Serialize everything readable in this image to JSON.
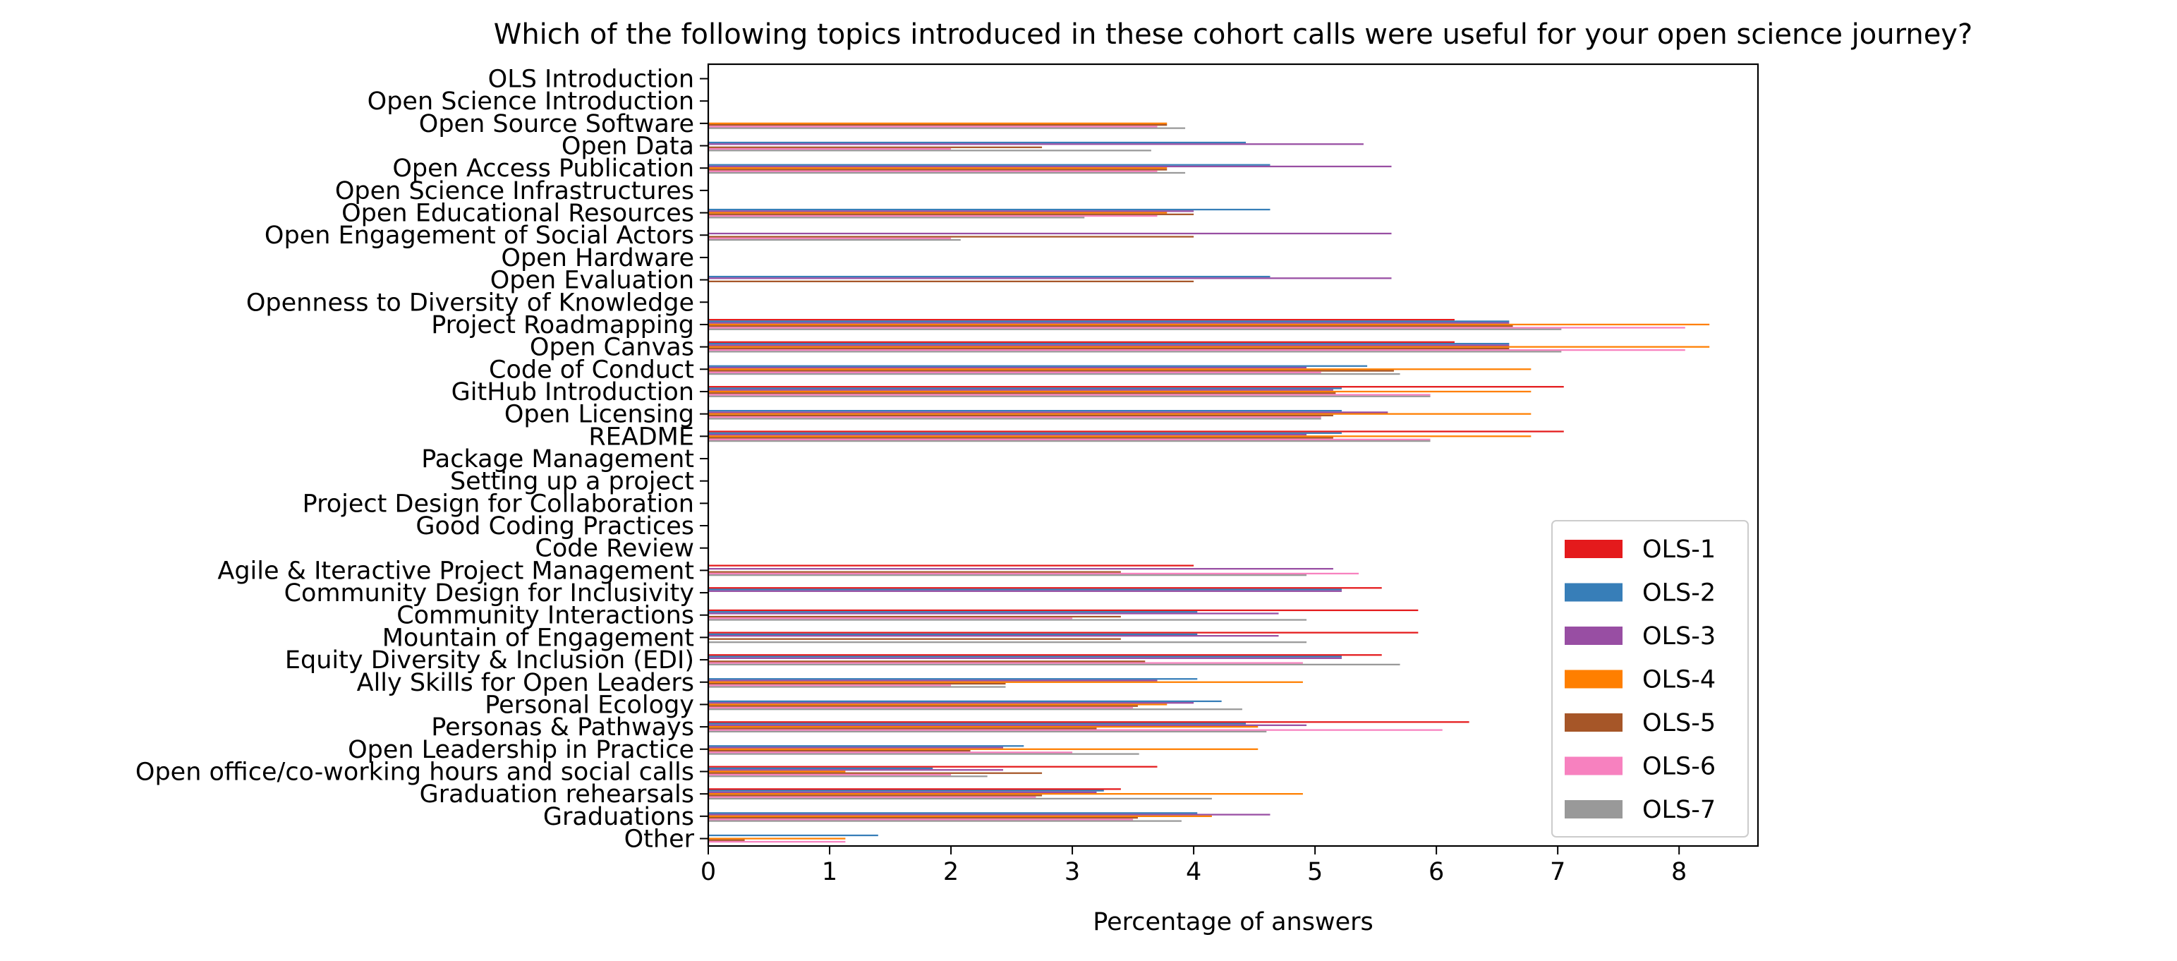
{
  "chart_data": {
    "type": "bar",
    "orientation": "horizontal",
    "title": "Which of the following topics introduced in these cohort calls were useful for your open science journey?",
    "xlabel": "Percentage of answers",
    "ylabel": "",
    "xlim": [
      0,
      8.65
    ],
    "xticks": [
      "0",
      "1",
      "2",
      "3",
      "4",
      "5",
      "6",
      "7",
      "8"
    ],
    "grid": false,
    "legend_position": "bottom-right",
    "categories": [
      "OLS Introduction",
      "Open Science Introduction",
      "Open Source Software",
      "Open Data",
      "Open Access Publication",
      "Open Science Infrastructures",
      "Open Educational Resources",
      "Open Engagement of Social Actors",
      "Open Hardware",
      "Open Evaluation",
      "Openness to Diversity of Knowledge",
      "Project Roadmapping",
      "Open Canvas",
      "Code of Conduct",
      "GitHub Introduction",
      "Open Licensing",
      "README",
      "Package Management",
      "Setting up a project",
      "Project Design for Collaboration",
      "Good Coding Practices",
      "Code Review",
      "Agile & Iteractive Project Management",
      "Community Design for Inclusivity",
      "Community Interactions",
      "Mountain of Engagement",
      "Equity Diversity & Inclusion (EDI)",
      "Ally Skills for Open Leaders",
      "Personal Ecology",
      "Personas & Pathways",
      "Open Leadership in Practice",
      "Open office/co-working hours and social calls",
      "Graduation rehearsals",
      "Graduations",
      "Other"
    ],
    "series": [
      {
        "name": "OLS-1",
        "color": "#e41a1c",
        "values": [
          0,
          0,
          0,
          0,
          0,
          0,
          0,
          0,
          0,
          0,
          0,
          6.15,
          6.15,
          0,
          7.05,
          0,
          7.05,
          0,
          0,
          0,
          0,
          0,
          4.0,
          5.55,
          5.85,
          5.85,
          5.55,
          0,
          0,
          6.27,
          0,
          3.7,
          3.4,
          0,
          0
        ]
      },
      {
        "name": "OLS-2",
        "color": "#377eb8",
        "values": [
          0,
          0,
          0,
          4.43,
          4.63,
          0,
          4.63,
          0,
          0,
          4.63,
          0,
          6.6,
          6.6,
          5.43,
          5.22,
          5.22,
          5.22,
          0,
          0,
          0,
          0,
          0,
          0,
          5.22,
          4.03,
          4.03,
          5.22,
          4.03,
          4.23,
          4.43,
          2.6,
          1.85,
          3.26,
          4.03,
          1.4
        ]
      },
      {
        "name": "OLS-3",
        "color": "#984ea3",
        "values": [
          0,
          0,
          0,
          5.4,
          5.63,
          0,
          4.0,
          5.63,
          0,
          5.63,
          0,
          6.6,
          6.6,
          4.93,
          5.15,
          5.6,
          4.93,
          0,
          0,
          0,
          0,
          0,
          5.15,
          5.22,
          4.7,
          4.7,
          5.22,
          3.7,
          4.0,
          4.93,
          2.43,
          2.43,
          3.2,
          4.63,
          0
        ]
      },
      {
        "name": "OLS-4",
        "color": "#ff7f00",
        "values": [
          0,
          0,
          3.78,
          0,
          3.78,
          0,
          3.78,
          0,
          0,
          0,
          0,
          8.25,
          8.25,
          6.78,
          6.78,
          6.78,
          6.78,
          0,
          0,
          0,
          0,
          0,
          0,
          0,
          0,
          0,
          0,
          4.9,
          3.78,
          4.53,
          4.53,
          1.13,
          4.9,
          4.15,
          1.13
        ]
      },
      {
        "name": "OLS-5",
        "color": "#a65628",
        "values": [
          0,
          0,
          3.78,
          2.75,
          3.78,
          0,
          4.0,
          4.0,
          0,
          4.0,
          0,
          6.63,
          6.6,
          5.65,
          5.17,
          5.15,
          5.15,
          0,
          0,
          0,
          0,
          0,
          3.4,
          0,
          3.4,
          3.4,
          3.6,
          2.45,
          3.54,
          3.2,
          2.16,
          2.75,
          2.75,
          3.54,
          0.3
        ]
      },
      {
        "name": "OLS-6",
        "color": "#f781bf",
        "values": [
          0,
          0,
          3.7,
          2.0,
          3.7,
          0,
          3.7,
          2.0,
          0,
          0,
          0,
          8.05,
          8.05,
          5.05,
          5.95,
          5.05,
          5.95,
          0,
          0,
          0,
          0,
          0,
          5.36,
          0,
          3.0,
          0,
          4.9,
          2.0,
          3.5,
          6.05,
          3.0,
          2.0,
          2.7,
          3.5,
          1.13
        ]
      },
      {
        "name": "OLS-7",
        "color": "#999999",
        "values": [
          0,
          0,
          3.93,
          3.65,
          3.93,
          0,
          3.1,
          2.08,
          0,
          0,
          0,
          7.03,
          7.03,
          5.7,
          5.95,
          5.05,
          5.95,
          0,
          0,
          0,
          0,
          0,
          4.93,
          0,
          4.93,
          4.93,
          5.7,
          2.45,
          4.4,
          4.6,
          3.55,
          2.3,
          4.15,
          3.9,
          0
        ]
      }
    ]
  }
}
